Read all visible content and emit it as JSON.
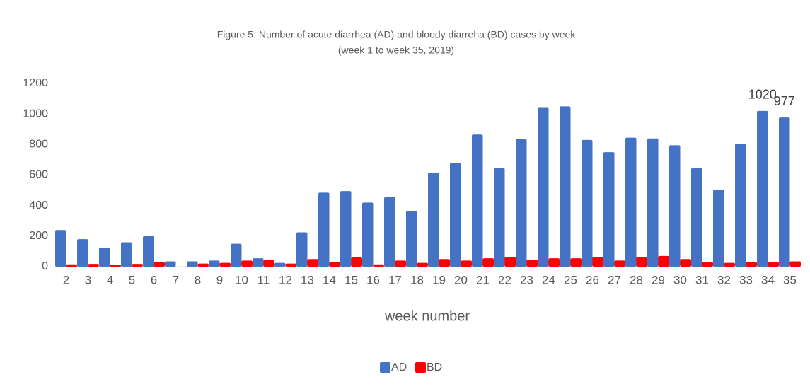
{
  "chart_data": {
    "type": "bar",
    "title": "Figure 5: Number of acute diarrhea (AD) and bloody diarreha (BD) cases by week",
    "subtitle": "(week 1 to week 35, 2019)",
    "x_label": "week number",
    "categories": [
      "2",
      "3",
      "4",
      "5",
      "6",
      "7",
      "8",
      "9",
      "10",
      "11",
      "12",
      "13",
      "14",
      "15",
      "16",
      "17",
      "18",
      "19",
      "20",
      "21",
      "22",
      "23",
      "24",
      "25",
      "26",
      "27",
      "28",
      "29",
      "30",
      "31",
      "32",
      "33",
      "34",
      "35"
    ],
    "series": [
      {
        "name": "AD",
        "color": "#4472c4",
        "values": [
          240,
          180,
          125,
          160,
          200,
          35,
          35,
          40,
          150,
          55,
          25,
          225,
          485,
          495,
          420,
          455,
          365,
          615,
          680,
          865,
          645,
          835,
          1045,
          1050,
          830,
          750,
          845,
          840,
          795,
          645,
          505,
          805,
          1020,
          977
        ],
        "value_labels": [
          null,
          null,
          null,
          null,
          null,
          null,
          null,
          null,
          null,
          null,
          null,
          null,
          null,
          null,
          null,
          null,
          null,
          null,
          null,
          null,
          null,
          null,
          null,
          null,
          null,
          null,
          null,
          null,
          null,
          null,
          null,
          null,
          "1020",
          "977"
        ]
      },
      {
        "name": "BD",
        "color": "#ff0000",
        "values": [
          15,
          18,
          12,
          18,
          30,
          null,
          20,
          25,
          40,
          45,
          20,
          50,
          30,
          60,
          15,
          40,
          25,
          50,
          40,
          55,
          65,
          45,
          55,
          55,
          65,
          40,
          65,
          70,
          50,
          30,
          25,
          30,
          30,
          35
        ]
      }
    ],
    "ylim": [
      0,
      1200
    ],
    "yticks": [
      0,
      200,
      400,
      600,
      800,
      1000,
      1200
    ],
    "grid": false,
    "legend": "bottom"
  }
}
